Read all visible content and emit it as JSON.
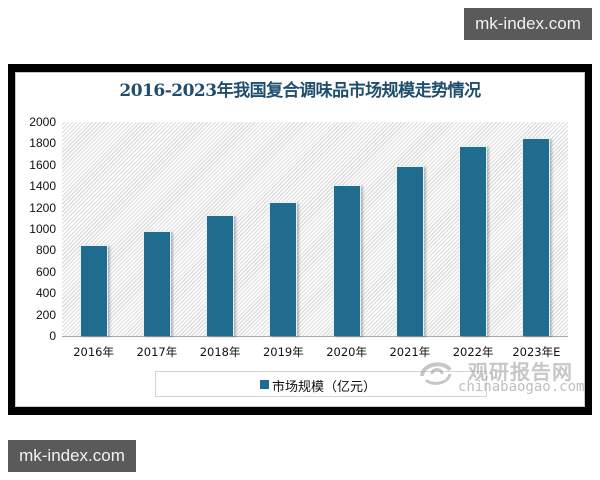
{
  "watermarks": {
    "top": "mk-index.com",
    "bottom": "mk-index.com"
  },
  "logo": {
    "chinese": "观研报告网",
    "english": "chinabaogao.com"
  },
  "colors": {
    "bar": "#1f6c8f",
    "title": "#1f4e6e",
    "frame": "#000000"
  },
  "chart_data": {
    "type": "bar",
    "title": "2016-2023年我国复合调味品市场规模走势情况",
    "xlabel": "",
    "ylabel": "",
    "categories": [
      "2016年",
      "2017年",
      "2018年",
      "2019年",
      "2020年",
      "2021年",
      "2022年",
      "2023年E"
    ],
    "series": [
      {
        "name": "市场规模（亿元）",
        "values": [
          848,
          979,
          1127,
          1255,
          1415,
          1587,
          1778,
          1850
        ]
      }
    ],
    "ylim": [
      0,
      2000
    ],
    "yticks": [
      "2000",
      "1800",
      "1600",
      "1400",
      "1200",
      "1000",
      "800",
      "600",
      "400",
      "200",
      "0"
    ],
    "grid": false,
    "legend_position": "bottom"
  }
}
